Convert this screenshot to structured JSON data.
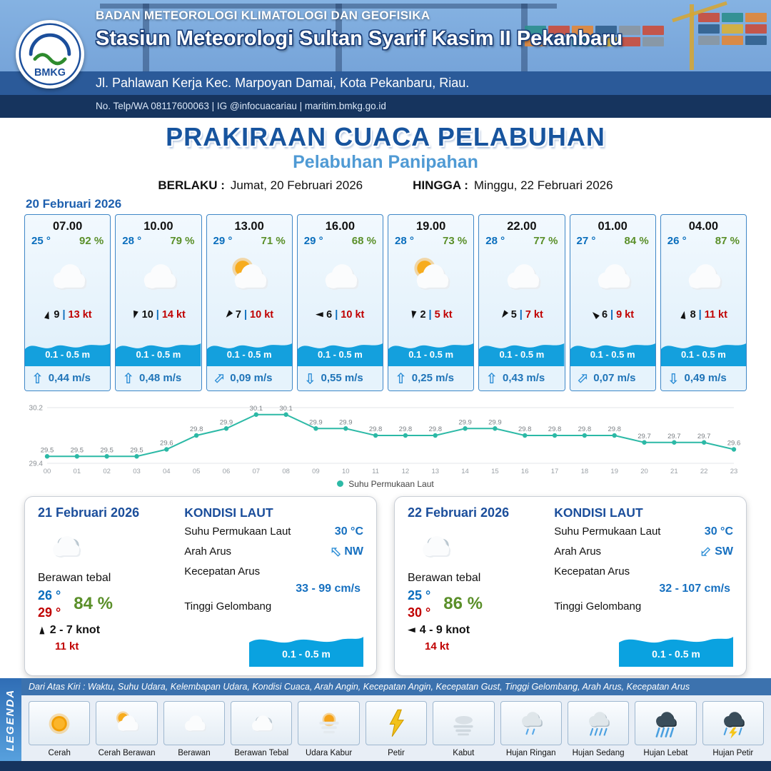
{
  "glyphs": {
    "wind_arrow": "►",
    "current_arrow": "⇧"
  },
  "header": {
    "agency": "BADAN METEOROLOGI KLIMATOLOGI DAN GEOFISIKA",
    "station": "Stasiun Meteorologi Sultan Syarif Kasim II Pekanbaru",
    "address": "Jl. Pahlawan Kerja Kec. Marpoyan Damai, Kota Pekanbaru, Riau.",
    "contact": "No. Telp/WA 08117600063 | IG @infocuacariau | maritim.bmkg.go.id",
    "logo_text": "BMKG"
  },
  "title": {
    "main": "PRAKIRAAN CUACA PELABUHAN",
    "subtitle": "Pelabuhan Panipahan",
    "valid_label": "BERLAKU :",
    "valid_value": "Jumat, 20 Februari 2026",
    "until_label": "HINGGA :",
    "until_value": "Minggu, 22 Februari 2026"
  },
  "forecast": {
    "date": "20 Februari 2026",
    "separator": "|",
    "cards": [
      {
        "time": "07.00",
        "temp": "25 °",
        "humidity": "92 %",
        "icon": "cloudy",
        "wind_speed": "9",
        "wind_gust": "13 kt",
        "wind_deg": -75,
        "wave": "0.1 - 0.5 m",
        "current_speed": "0,44 m/s",
        "current_deg": 0
      },
      {
        "time": "10.00",
        "temp": "28 °",
        "humidity": "79 %",
        "icon": "cloudy",
        "wind_speed": "10",
        "wind_gust": "14 kt",
        "wind_deg": 105,
        "wave": "0.1 - 0.5 m",
        "current_speed": "0,48 m/s",
        "current_deg": 0
      },
      {
        "time": "13.00",
        "temp": "29 °",
        "humidity": "71 %",
        "icon": "partly-sunny",
        "wind_speed": "7",
        "wind_gust": "10 kt",
        "wind_deg": 130,
        "wave": "0.1 - 0.5 m",
        "current_speed": "0,09 m/s",
        "current_deg": 45
      },
      {
        "time": "16.00",
        "temp": "29 °",
        "humidity": "68 %",
        "icon": "cloudy",
        "wind_speed": "6",
        "wind_gust": "10 kt",
        "wind_deg": 180,
        "wave": "0.1 - 0.5 m",
        "current_speed": "0,55 m/s",
        "current_deg": 180
      },
      {
        "time": "19.00",
        "temp": "28 °",
        "humidity": "73 %",
        "icon": "partly-sunny",
        "wind_speed": "2",
        "wind_gust": "5 kt",
        "wind_deg": 100,
        "wave": "0.1 - 0.5 m",
        "current_speed": "0,25 m/s",
        "current_deg": 0
      },
      {
        "time": "22.00",
        "temp": "28 °",
        "humidity": "77 %",
        "icon": "cloudy",
        "wind_speed": "5",
        "wind_gust": "7 kt",
        "wind_deg": 125,
        "wave": "0.1 - 0.5 m",
        "current_speed": "0,43 m/s",
        "current_deg": 0
      },
      {
        "time": "01.00",
        "temp": "27 °",
        "humidity": "84 %",
        "icon": "cloudy",
        "wind_speed": "6",
        "wind_gust": "9 kt",
        "wind_deg": -135,
        "wave": "0.1 - 0.5 m",
        "current_speed": "0,07 m/s",
        "current_deg": 45
      },
      {
        "time": "04.00",
        "temp": "26 °",
        "humidity": "87 %",
        "icon": "cloudy",
        "wind_speed": "8",
        "wind_gust": "11 kt",
        "wind_deg": -80,
        "wave": "0.1 - 0.5 m",
        "current_speed": "0,49 m/s",
        "current_deg": 180
      }
    ]
  },
  "chart_data": {
    "type": "line",
    "legend_label": "Suhu Permukaan Laut",
    "line_color": "#2cb9a6",
    "x": [
      "00",
      "01",
      "02",
      "03",
      "04",
      "05",
      "06",
      "07",
      "08",
      "09",
      "10",
      "11",
      "12",
      "13",
      "14",
      "15",
      "16",
      "17",
      "18",
      "19",
      "20",
      "21",
      "22",
      "23"
    ],
    "values": [
      29.5,
      29.5,
      29.5,
      29.5,
      29.6,
      29.8,
      29.9,
      30.1,
      30.1,
      29.9,
      29.9,
      29.8,
      29.8,
      29.8,
      29.9,
      29.9,
      29.8,
      29.8,
      29.8,
      29.8,
      29.7,
      29.7,
      29.7,
      29.6
    ],
    "ylim": [
      29.4,
      30.2
    ],
    "yticks": [
      30.2,
      29.4
    ],
    "xlabel": "",
    "ylabel": ""
  },
  "daily": [
    {
      "date": "21 Februari 2026",
      "icon": "cloudy-thick",
      "condition": "Berawan tebal",
      "temp_min": "26 °",
      "temp_max": "29 °",
      "humidity": "84 %",
      "wind_range": "2 - 7 knot",
      "wind_gust": "11 kt",
      "wind_deg": -90,
      "sea": {
        "title": "KONDISI LAUT",
        "sst_label": "Suhu Permukaan Laut",
        "sst": "30 °C",
        "current_dir_label": "Arah Arus",
        "current_dir": "NW",
        "current_deg": -45,
        "current_speed_label": "Kecepatan Arus",
        "current_speed": "33  - 99 cm/s",
        "wave_label": "Tinggi Gelombang",
        "wave": "0.1 - 0.5 m"
      }
    },
    {
      "date": "22 Februari 2026",
      "icon": "cloudy-thick",
      "condition": "Berawan tebal",
      "temp_min": "25 °",
      "temp_max": "30 °",
      "humidity": "86 %",
      "wind_range": "4  - 9 knot",
      "wind_gust": "14 kt",
      "wind_deg": 180,
      "sea": {
        "title": "KONDISI LAUT",
        "sst_label": "Suhu Permukaan Laut",
        "sst": "30 °C",
        "current_dir_label": "Arah Arus",
        "current_dir": "SW",
        "current_deg": -135,
        "current_speed_label": "Kecepatan Arus",
        "current_speed": "32  - 107 cm/s",
        "wave_label": "Tinggi Gelombang",
        "wave": "0.1 - 0.5 m"
      }
    }
  ],
  "legend": {
    "title": "LEGENDA",
    "description": "Dari Atas Kiri : Waktu, Suhu Udara, Kelembapan Udara, Kondisi Cuaca, Arah Angin, Kecepatan Angin, Kecepatan Gust, Tinggi Gelombang, Arah Arus, Kecepatan Arus",
    "items": [
      {
        "label": "Cerah",
        "icon": "sun"
      },
      {
        "label": "Cerah Berawan",
        "icon": "partly-sunny"
      },
      {
        "label": "Berawan",
        "icon": "cloudy"
      },
      {
        "label": "Berawan Tebal",
        "icon": "cloudy-thick"
      },
      {
        "label": "Udara Kabur",
        "icon": "hazy"
      },
      {
        "label": "Petir",
        "icon": "lightning"
      },
      {
        "label": "Kabut",
        "icon": "fog"
      },
      {
        "label": "Hujan Ringan",
        "icon": "rain-light"
      },
      {
        "label": "Hujan Sedang",
        "icon": "rain-moderate"
      },
      {
        "label": "Hujan Lebat",
        "icon": "rain-heavy"
      },
      {
        "label": "Hujan Petir",
        "icon": "thunderstorm"
      }
    ]
  },
  "colors": {
    "header_blue": "#6d9bd3",
    "band_navy": "#16345e",
    "title_blue": "#17549e",
    "subtitle_blue": "#4f9ad4",
    "temp_blue": "#0a6ebd",
    "humidity_green": "#5a8f29",
    "gust_red": "#c00000",
    "wave_blue": "#14a0dd",
    "chart_teal": "#2cb9a6"
  }
}
